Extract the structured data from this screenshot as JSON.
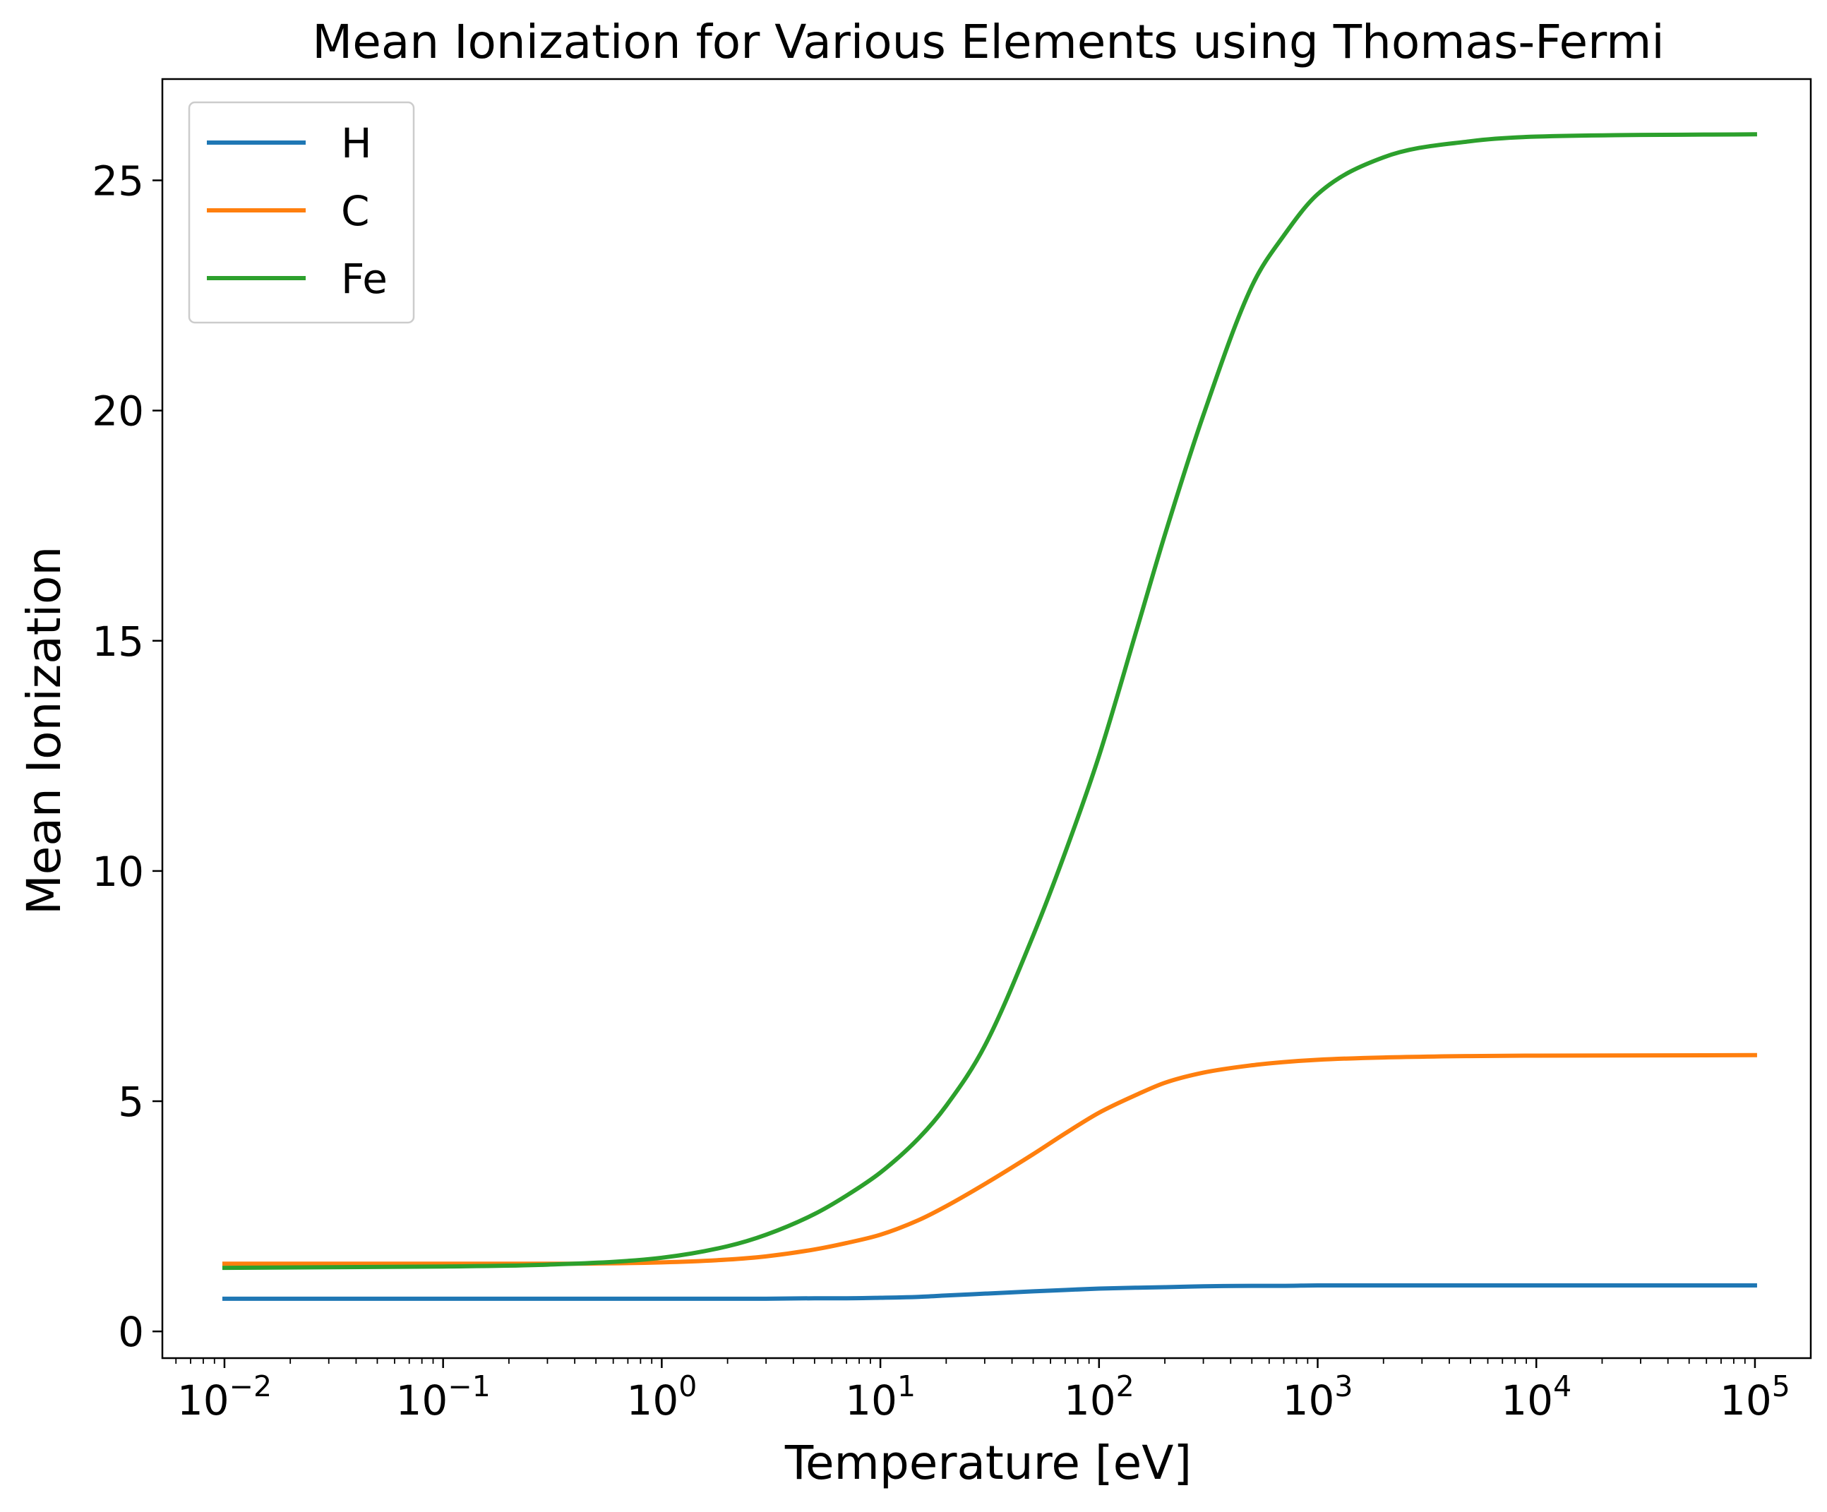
{
  "chart_data": {
    "type": "line",
    "title": "Mean Ionization for Various Elements using Thomas-Fermi",
    "xlabel": "Temperature [eV]",
    "ylabel": "Mean Ionization",
    "x_scale": "log",
    "xlim": [
      0.0052,
      180000
    ],
    "ylim": [
      -0.58,
      27.2
    ],
    "legend_position": "top-left",
    "grid": false,
    "x_ticks": [
      {
        "value": 0.01,
        "base": "10",
        "exp": "−2"
      },
      {
        "value": 0.1,
        "base": "10",
        "exp": "−1"
      },
      {
        "value": 1,
        "base": "10",
        "exp": "0"
      },
      {
        "value": 10,
        "base": "10",
        "exp": "1"
      },
      {
        "value": 100,
        "base": "10",
        "exp": "2"
      },
      {
        "value": 1000,
        "base": "10",
        "exp": "3"
      },
      {
        "value": 10000,
        "base": "10",
        "exp": "4"
      },
      {
        "value": 100000,
        "base": "10",
        "exp": "5"
      }
    ],
    "y_ticks": [
      {
        "value": 0,
        "label": "0"
      },
      {
        "value": 5,
        "label": "5"
      },
      {
        "value": 10,
        "label": "10"
      },
      {
        "value": 15,
        "label": "15"
      },
      {
        "value": 20,
        "label": "20"
      },
      {
        "value": 25,
        "label": "25"
      }
    ],
    "x": [
      0.01,
      0.1,
      0.3,
      1,
      2,
      3,
      5,
      7,
      10,
      15,
      20,
      30,
      50,
      70,
      100,
      150,
      200,
      300,
      500,
      700,
      1000,
      2000,
      5000,
      10000,
      100000
    ],
    "series": [
      {
        "name": "H",
        "color": "#1f77b4",
        "values": [
          0.71,
          0.71,
          0.71,
          0.71,
          0.71,
          0.71,
          0.72,
          0.72,
          0.73,
          0.75,
          0.78,
          0.82,
          0.87,
          0.9,
          0.93,
          0.95,
          0.96,
          0.98,
          0.99,
          0.99,
          1.0,
          1.0,
          1.0,
          1.0,
          1.0
        ]
      },
      {
        "name": "C",
        "color": "#ff7f0e",
        "values": [
          1.47,
          1.47,
          1.47,
          1.5,
          1.56,
          1.63,
          1.78,
          1.92,
          2.1,
          2.42,
          2.72,
          3.2,
          3.85,
          4.3,
          4.75,
          5.15,
          5.4,
          5.62,
          5.78,
          5.85,
          5.9,
          5.95,
          5.98,
          5.99,
          6.0
        ]
      },
      {
        "name": "Fe",
        "color": "#2ca02c",
        "values": [
          1.38,
          1.41,
          1.45,
          1.6,
          1.85,
          2.1,
          2.55,
          2.95,
          3.45,
          4.2,
          4.9,
          6.2,
          8.6,
          10.4,
          12.5,
          15.3,
          17.3,
          19.9,
          22.7,
          23.8,
          24.7,
          25.5,
          25.85,
          25.95,
          26.0
        ]
      }
    ]
  }
}
